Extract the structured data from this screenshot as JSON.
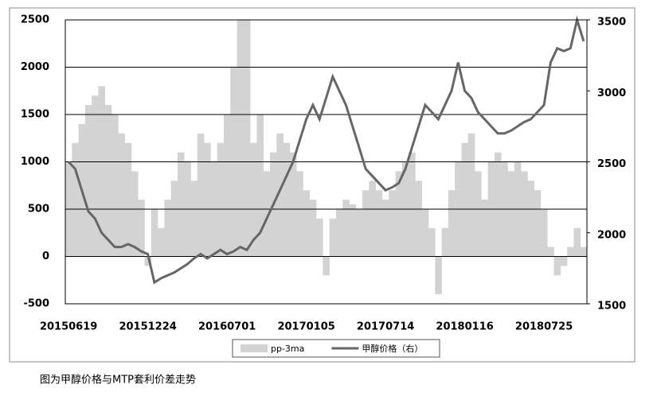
{
  "chart_data": {
    "type": "combo",
    "caption": "图为甲醇价格与MTP套利价差走势",
    "categories": [
      "20150619",
      null,
      null,
      null,
      null,
      null,
      null,
      null,
      null,
      null,
      null,
      null,
      "20151224",
      null,
      null,
      null,
      null,
      null,
      null,
      null,
      null,
      null,
      null,
      null,
      "20160701",
      null,
      null,
      null,
      null,
      null,
      null,
      null,
      null,
      null,
      null,
      null,
      "20170105",
      null,
      null,
      null,
      null,
      null,
      null,
      null,
      null,
      null,
      null,
      null,
      "20170714",
      null,
      null,
      null,
      null,
      null,
      null,
      null,
      null,
      null,
      null,
      null,
      "20180116",
      null,
      null,
      null,
      null,
      null,
      null,
      null,
      null,
      null,
      null,
      null,
      "20180725",
      null,
      null,
      null,
      null,
      null,
      null
    ],
    "series": [
      {
        "name": "pp-3ma",
        "type": "bar",
        "color": "#d3d3d3",
        "axis": "y",
        "values": [
          1000,
          1200,
          1400,
          1600,
          1700,
          1800,
          1600,
          1500,
          1300,
          1200,
          900,
          600,
          -100,
          500,
          300,
          600,
          800,
          1100,
          1000,
          800,
          1300,
          1200,
          1000,
          1200,
          1500,
          2000,
          2500,
          2500,
          1200,
          1500,
          900,
          1100,
          1300,
          1200,
          1100,
          900,
          700,
          600,
          400,
          -200,
          400,
          500,
          600,
          550,
          500,
          700,
          800,
          700,
          600,
          700,
          900,
          1000,
          1100,
          800,
          500,
          300,
          -400,
          300,
          700,
          1000,
          1200,
          1300,
          900,
          600,
          1000,
          1100,
          1000,
          900,
          1000,
          900,
          800,
          700,
          500,
          100,
          -200,
          -100,
          100,
          300,
          100
        ]
      },
      {
        "name": "甲醇价格（右）",
        "type": "line",
        "color": "#666666",
        "axis": "y2",
        "values": [
          2500,
          2450,
          2300,
          2150,
          2100,
          2000,
          1950,
          1900,
          1900,
          1920,
          1900,
          1870,
          1850,
          1650,
          1680,
          1700,
          1720,
          1750,
          1780,
          1820,
          1850,
          1820,
          1850,
          1880,
          1850,
          1870,
          1900,
          1880,
          1950,
          2000,
          2100,
          2200,
          2300,
          2400,
          2500,
          2650,
          2800,
          2900,
          2800,
          2950,
          3100,
          3000,
          2900,
          2750,
          2600,
          2450,
          2400,
          2350,
          2300,
          2320,
          2350,
          2450,
          2600,
          2750,
          2900,
          2850,
          2800,
          2900,
          3000,
          3200,
          3000,
          2950,
          2850,
          2800,
          2750,
          2700,
          2700,
          2720,
          2750,
          2780,
          2800,
          2850,
          2900,
          3200,
          3300,
          3280,
          3300,
          3500,
          3350
        ]
      }
    ],
    "ylim": [
      -500,
      2500
    ],
    "yticks": [
      -500,
      0,
      500,
      1000,
      1500,
      2000,
      2500
    ],
    "y2lim": [
      1500,
      3500
    ],
    "y2ticks": [
      1500,
      2000,
      2500,
      3000,
      3500
    ],
    "grid": true,
    "legend": "bottom"
  }
}
